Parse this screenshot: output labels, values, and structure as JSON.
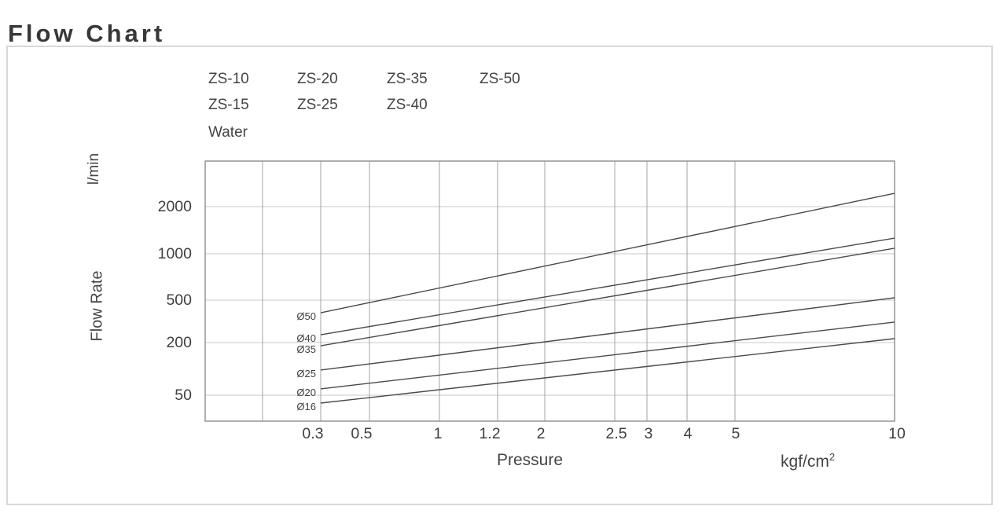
{
  "page": {
    "title": "Flow Chart"
  },
  "legend": {
    "rows": [
      {
        "items": [
          "ZS-10",
          "ZS-20",
          "ZS-35",
          "ZS-50"
        ]
      },
      {
        "items": [
          "ZS-15",
          "ZS-25",
          "ZS-40"
        ]
      },
      {
        "items": [
          "Water"
        ]
      }
    ]
  },
  "axes": {
    "y_unit": "l/min",
    "y_label": "Flow Rate",
    "x_label": "Pressure",
    "x_unit_base": "kgf/cm",
    "x_unit_sup": "2"
  },
  "colors": {
    "text": "#3f3f3f",
    "grid_vertical": "#a3a3a3",
    "grid_horizontal": "#c9c9c9",
    "plot_border": "#8d8d8d",
    "series_line": "#4a4a4a",
    "panel_border": "#d8d8d8"
  },
  "chart_data": {
    "type": "line",
    "title": "Flow Chart",
    "xlabel": "Pressure",
    "x_unit": "kgf/cm2",
    "ylabel": "Flow Rate",
    "y_unit": "l/min",
    "x_scale": "log-like (stylized, non-uniform)",
    "y_scale": "log-like (stylized, non-uniform)",
    "grid": true,
    "legend_position": "top-left above plot",
    "legend_entries": [
      "ZS-10",
      "ZS-15",
      "ZS-20",
      "ZS-25",
      "ZS-35",
      "ZS-40",
      "ZS-50",
      "Water"
    ],
    "x_ticks": [
      {
        "label": "",
        "f": 0.0832,
        "dx": 0
      },
      {
        "label": "0.3",
        "f": 0.1676,
        "dx": -10
      },
      {
        "label": "0.5",
        "f": 0.2383,
        "dx": -10
      },
      {
        "label": "1",
        "f": 0.3398,
        "dx": -2
      },
      {
        "label": "1.2",
        "f": 0.4242,
        "dx": -10
      },
      {
        "label": "2",
        "f": 0.4926,
        "dx": -5
      },
      {
        "label": "2.5",
        "f": 0.5941,
        "dx": 2
      },
      {
        "label": "3",
        "f": 0.6408,
        "dx": 2
      },
      {
        "label": "4",
        "f": 0.699,
        "dx": 1
      },
      {
        "label": "5",
        "f": 0.7685,
        "dx": 1
      },
      {
        "label": "10",
        "f": 1.0,
        "dx": 3
      }
    ],
    "y_ticks": [
      {
        "label": "2000",
        "f": 0.1752
      },
      {
        "label": "1000",
        "f": 0.3565
      },
      {
        "label": "500",
        "f": 0.5347
      },
      {
        "label": "200",
        "f": 0.6979
      },
      {
        "label": "50",
        "f": 0.9003
      }
    ],
    "series": [
      {
        "name": "Ø50",
        "x1f": 0.1676,
        "y1f": 0.5831,
        "x2f": 1.0,
        "y2f": 0.1239,
        "points_est": [
          [
            0.3,
            400
          ],
          [
            10,
            2400
          ]
        ]
      },
      {
        "name": "Ø40",
        "x1f": 0.1676,
        "y1f": 0.6677,
        "x2f": 1.0,
        "y2f": 0.2961,
        "points_est": [
          [
            0.3,
            240
          ],
          [
            10,
            1300
          ]
        ]
      },
      {
        "name": "Ø35",
        "x1f": 0.1676,
        "y1f": 0.71,
        "x2f": 1.0,
        "y2f": 0.3353,
        "points_est": [
          [
            0.3,
            190
          ],
          [
            10,
            1100
          ]
        ]
      },
      {
        "name": "Ø25",
        "x1f": 0.1676,
        "y1f": 0.8036,
        "x2f": 1.0,
        "y2f": 0.5257,
        "points_est": [
          [
            0.3,
            100
          ],
          [
            10,
            540
          ]
        ]
      },
      {
        "name": "Ø20",
        "x1f": 0.1676,
        "y1f": 0.8761,
        "x2f": 1.0,
        "y2f": 0.6193,
        "points_est": [
          [
            0.3,
            63
          ],
          [
            10,
            320
          ]
        ]
      },
      {
        "name": "Ø16",
        "x1f": 0.1676,
        "y1f": 0.9305,
        "x2f": 1.0,
        "y2f": 0.6828,
        "points_est": [
          [
            0.3,
            44
          ],
          [
            10,
            215
          ]
        ]
      }
    ]
  }
}
